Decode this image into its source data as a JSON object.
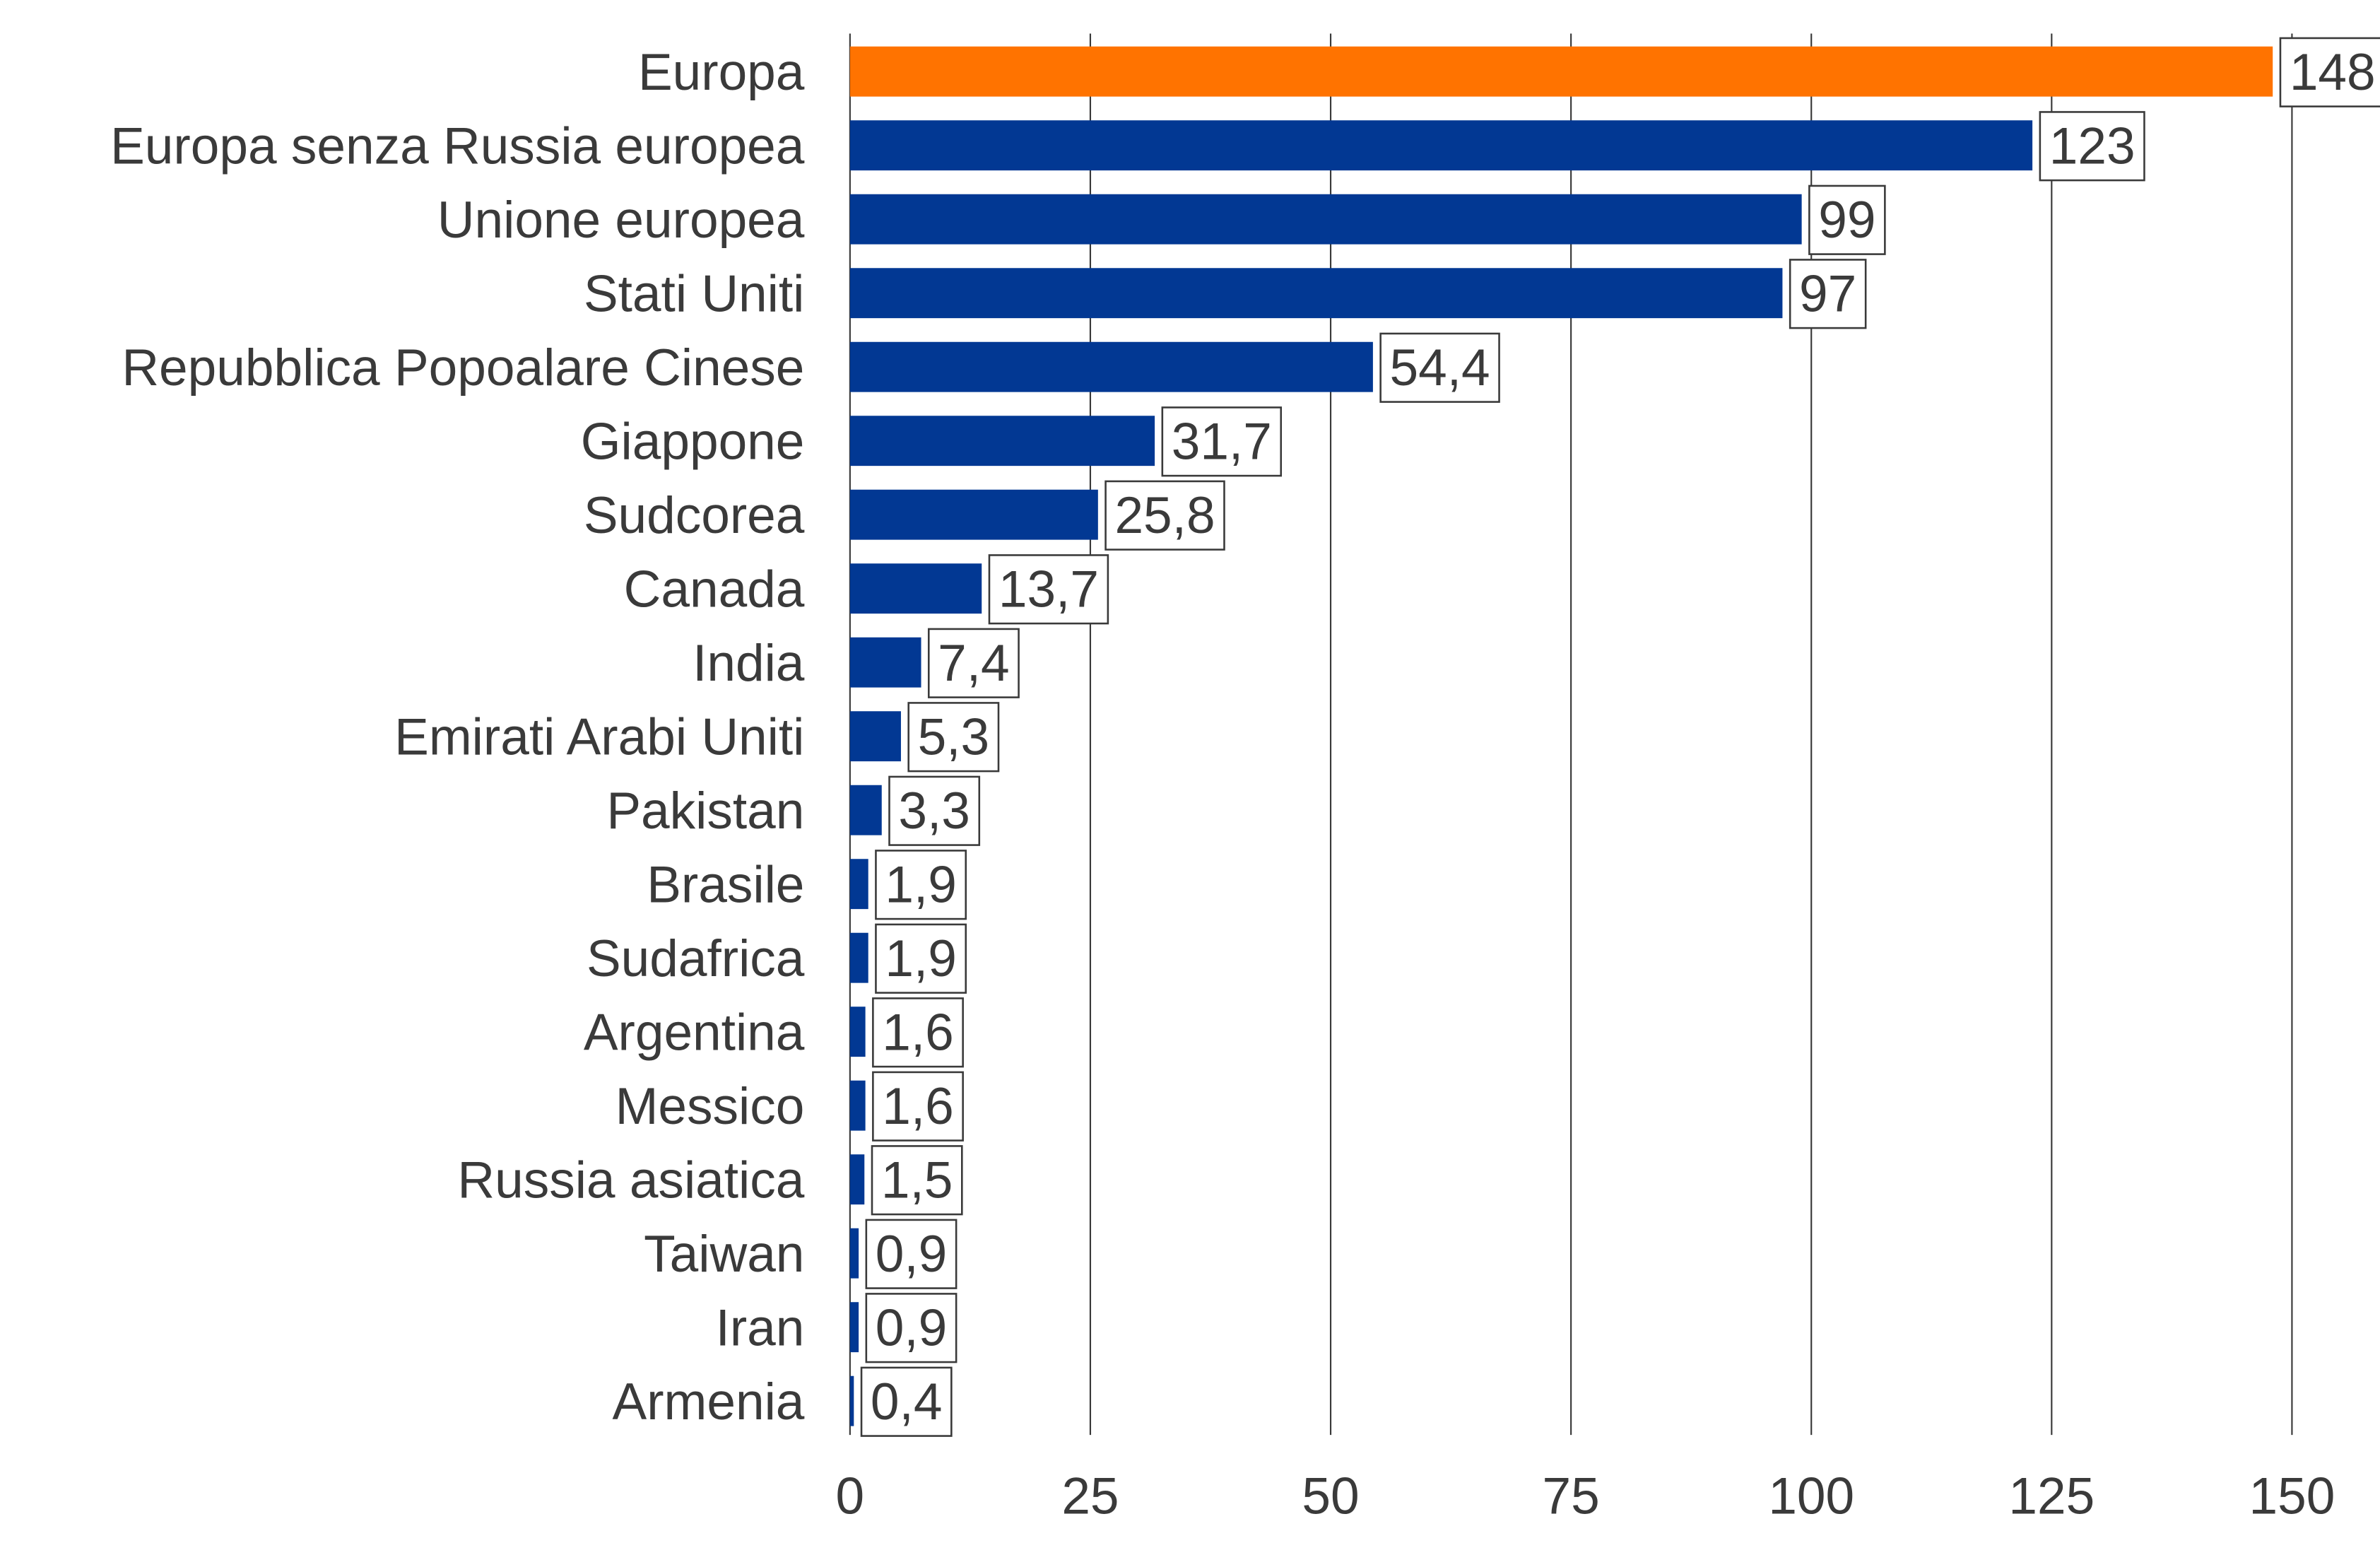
{
  "chart_data": {
    "type": "bar",
    "orientation": "horizontal",
    "categories": [
      "Europa",
      "Europa senza Russia europea",
      "Unione europea",
      "Stati Uniti",
      "Repubblica Popoalare Cinese",
      "Giappone",
      "Sudcorea",
      "Canada",
      "India",
      "Emirati Arabi Uniti",
      "Pakistan",
      "Brasile",
      "Sudafrica",
      "Argentina",
      "Messico",
      "Russia asiatica",
      "Taiwan",
      "Iran",
      "Armenia"
    ],
    "values": [
      148,
      123,
      99,
      97,
      54.4,
      31.7,
      25.8,
      13.7,
      7.4,
      5.3,
      3.3,
      1.9,
      1.9,
      1.6,
      1.6,
      1.5,
      0.9,
      0.9,
      0.4
    ],
    "data_labels": [
      "148",
      "123",
      "99",
      "97",
      "54,4",
      "31,7",
      "25,8",
      "13,7",
      "7,4",
      "5,3",
      "3,3",
      "1,9",
      "1,9",
      "1,6",
      "1,6",
      "1,5",
      "0,9",
      "0,9",
      "0,4"
    ],
    "highlight_index": 0,
    "colors": {
      "highlight": "#FF7300",
      "default": "#023893",
      "grid": "#3a3a3a",
      "text": "#3a3a3a"
    },
    "xlim": [
      0,
      150
    ],
    "xticks": [
      0,
      25,
      50,
      75,
      100,
      125,
      150
    ],
    "xtick_labels": [
      "0",
      "25",
      "50",
      "75",
      "100",
      "125",
      "150"
    ],
    "grid": "vertical",
    "title": "",
    "xlabel": "",
    "ylabel": ""
  }
}
